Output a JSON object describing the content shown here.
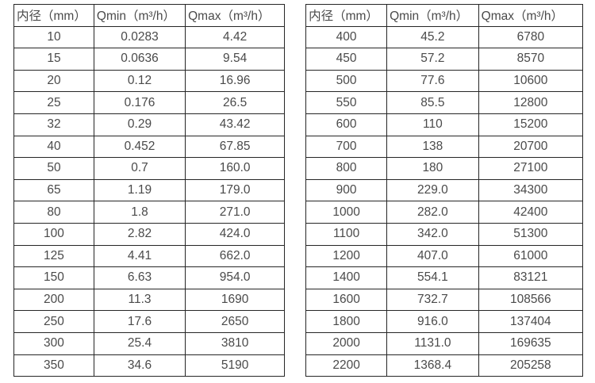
{
  "colors": {
    "border": "#262626",
    "text": "#4a4a4a",
    "background": "#ffffff"
  },
  "tables": [
    {
      "name": "flow-table-small-diameters",
      "headers": [
        "内径（mm）",
        "Qmin（m³/h）",
        "Qmax（m³/h）"
      ],
      "rows": [
        [
          "10",
          "0.0283",
          "4.42"
        ],
        [
          "15",
          "0.0636",
          "9.54"
        ],
        [
          "20",
          "0.12",
          "16.96"
        ],
        [
          "25",
          "0.176",
          "26.5"
        ],
        [
          "32",
          "0.29",
          "43.42"
        ],
        [
          "40",
          "0.452",
          "67.85"
        ],
        [
          "50",
          "0.7",
          "160.0"
        ],
        [
          "65",
          "1.19",
          "179.0"
        ],
        [
          "80",
          "1.8",
          "271.0"
        ],
        [
          "100",
          "2.82",
          "424.0"
        ],
        [
          "125",
          "4.41",
          "662.0"
        ],
        [
          "150",
          "6.63",
          "954.0"
        ],
        [
          "200",
          "11.3",
          "1690"
        ],
        [
          "250",
          "17.6",
          "2650"
        ],
        [
          "300",
          "25.4",
          "3810"
        ],
        [
          "350",
          "34.6",
          "5190"
        ]
      ]
    },
    {
      "name": "flow-table-large-diameters",
      "headers": [
        "内径（mm）",
        "Qmin（m³/h）",
        "Qmax（m³/h）"
      ],
      "rows": [
        [
          "400",
          "45.2",
          "6780"
        ],
        [
          "450",
          "57.2",
          "8570"
        ],
        [
          "500",
          "77.6",
          "10600"
        ],
        [
          "550",
          "85.5",
          "12800"
        ],
        [
          "600",
          "110",
          "15200"
        ],
        [
          "700",
          "138",
          "20700"
        ],
        [
          "800",
          "180",
          "27100"
        ],
        [
          "900",
          "229.0",
          "34300"
        ],
        [
          "1000",
          "282.0",
          "42400"
        ],
        [
          "1100",
          "342.0",
          "51300"
        ],
        [
          "1200",
          "407.0",
          "61000"
        ],
        [
          "1400",
          "554.1",
          "83121"
        ],
        [
          "1600",
          "732.7",
          "108566"
        ],
        [
          "1800",
          "916.0",
          "137404"
        ],
        [
          "2000",
          "1131.0",
          "169635"
        ],
        [
          "2200",
          "1368.4",
          "205258"
        ]
      ]
    }
  ]
}
